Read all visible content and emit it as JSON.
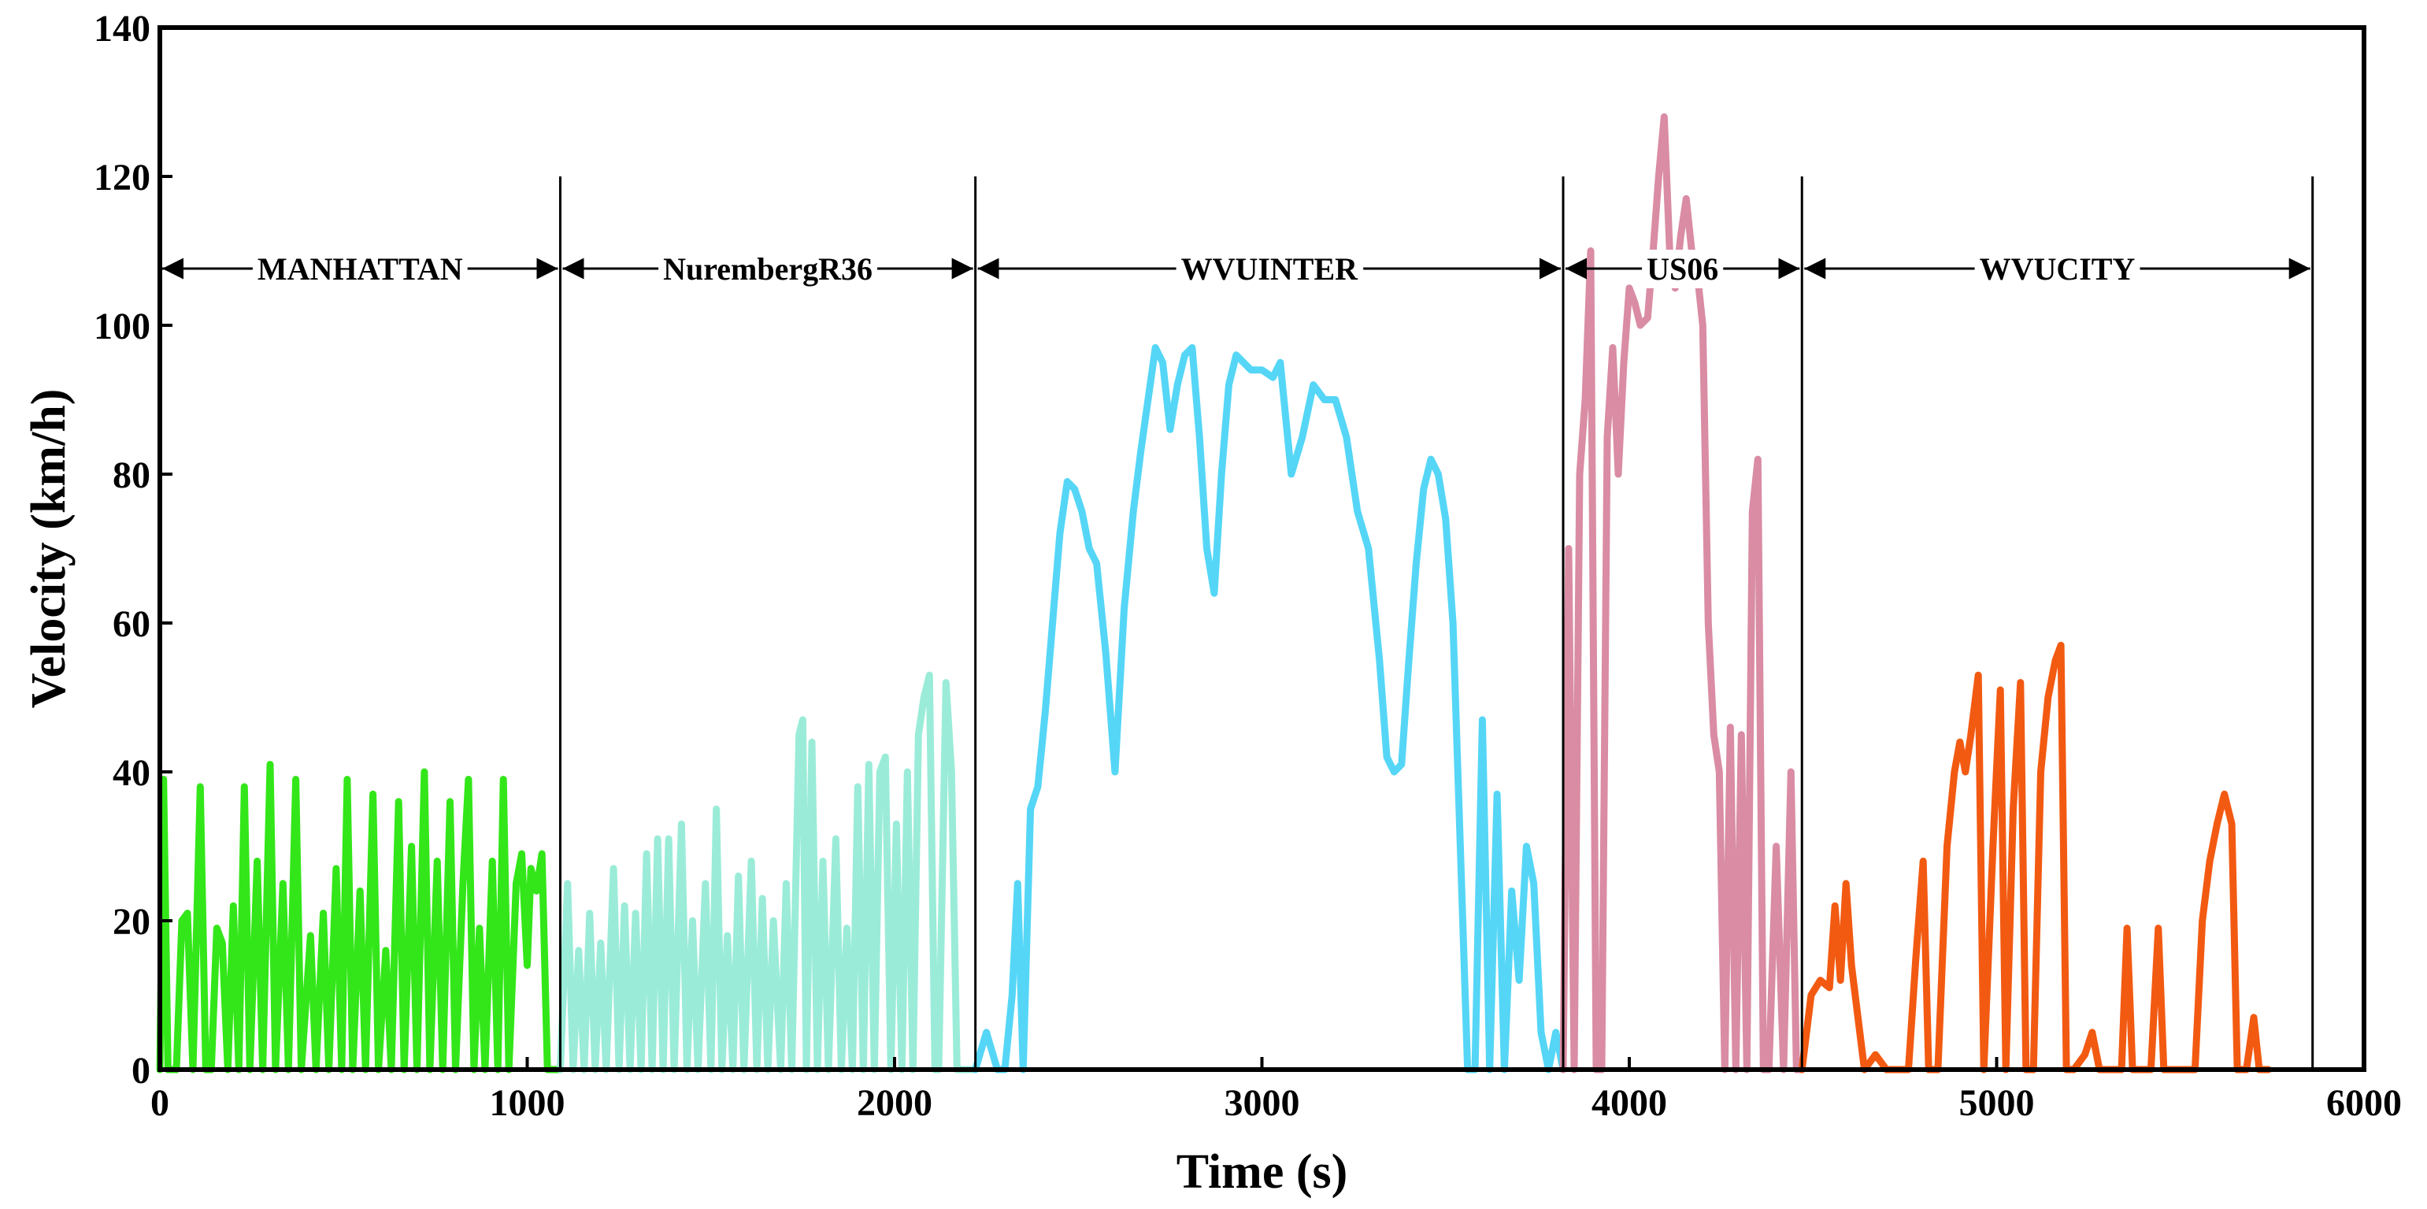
{
  "chart_data": {
    "type": "line",
    "xlabel": "Time (s)",
    "ylabel": "Velocity (km/h)",
    "xlim": [
      0,
      6000
    ],
    "ylim": [
      0,
      140
    ],
    "xticks": [
      "0",
      "1000",
      "2000",
      "3000",
      "4000",
      "5000",
      "6000"
    ],
    "yticks": [
      "0",
      "20",
      "40",
      "60",
      "80",
      "100",
      "120",
      "140"
    ],
    "grid": false,
    "segments": [
      {
        "name": "MANHATTAN",
        "start": 0,
        "end": 1090
      },
      {
        "name": "NurembergR36",
        "start": 1090,
        "end": 2220
      },
      {
        "name": "WVUINTER",
        "start": 2220,
        "end": 3820
      },
      {
        "name": "US06",
        "start": 3820,
        "end": 4470
      },
      {
        "name": "WVUCITY",
        "start": 4470,
        "end": 5860
      }
    ],
    "series": [
      {
        "name": "MANHATTAN",
        "color": "#33e619",
        "points": [
          [
            0,
            0
          ],
          [
            10,
            39
          ],
          [
            22,
            0
          ],
          [
            45,
            0
          ],
          [
            60,
            20
          ],
          [
            75,
            21
          ],
          [
            90,
            0
          ],
          [
            110,
            38
          ],
          [
            125,
            0
          ],
          [
            140,
            0
          ],
          [
            155,
            19
          ],
          [
            170,
            17
          ],
          [
            185,
            0
          ],
          [
            200,
            22
          ],
          [
            215,
            0
          ],
          [
            230,
            38
          ],
          [
            245,
            0
          ],
          [
            265,
            28
          ],
          [
            280,
            0
          ],
          [
            300,
            41
          ],
          [
            315,
            0
          ],
          [
            335,
            25
          ],
          [
            350,
            0
          ],
          [
            370,
            39
          ],
          [
            385,
            0
          ],
          [
            410,
            18
          ],
          [
            425,
            0
          ],
          [
            445,
            21
          ],
          [
            460,
            0
          ],
          [
            480,
            27
          ],
          [
            495,
            0
          ],
          [
            510,
            39
          ],
          [
            525,
            0
          ],
          [
            545,
            24
          ],
          [
            560,
            0
          ],
          [
            580,
            37
          ],
          [
            595,
            0
          ],
          [
            615,
            16
          ],
          [
            630,
            0
          ],
          [
            650,
            36
          ],
          [
            665,
            0
          ],
          [
            685,
            30
          ],
          [
            700,
            0
          ],
          [
            720,
            40
          ],
          [
            735,
            0
          ],
          [
            755,
            28
          ],
          [
            770,
            0
          ],
          [
            790,
            36
          ],
          [
            805,
            0
          ],
          [
            825,
            25
          ],
          [
            840,
            39
          ],
          [
            855,
            0
          ],
          [
            870,
            19
          ],
          [
            885,
            0
          ],
          [
            905,
            28
          ],
          [
            920,
            0
          ],
          [
            935,
            39
          ],
          [
            950,
            0
          ],
          [
            970,
            25
          ],
          [
            985,
            29
          ],
          [
            1000,
            14
          ],
          [
            1010,
            27
          ],
          [
            1025,
            24
          ],
          [
            1040,
            29
          ],
          [
            1055,
            0
          ],
          [
            1090,
            0
          ]
        ]
      },
      {
        "name": "NurembergR36",
        "color": "#9aecd8",
        "points": [
          [
            1090,
            0
          ],
          [
            1110,
            25
          ],
          [
            1125,
            0
          ],
          [
            1140,
            16
          ],
          [
            1155,
            0
          ],
          [
            1170,
            21
          ],
          [
            1185,
            0
          ],
          [
            1200,
            17
          ],
          [
            1215,
            0
          ],
          [
            1235,
            27
          ],
          [
            1250,
            0
          ],
          [
            1265,
            22
          ],
          [
            1280,
            0
          ],
          [
            1295,
            21
          ],
          [
            1310,
            0
          ],
          [
            1325,
            29
          ],
          [
            1340,
            0
          ],
          [
            1355,
            31
          ],
          [
            1370,
            0
          ],
          [
            1385,
            31
          ],
          [
            1400,
            0
          ],
          [
            1420,
            33
          ],
          [
            1435,
            0
          ],
          [
            1450,
            20
          ],
          [
            1465,
            0
          ],
          [
            1485,
            25
          ],
          [
            1500,
            0
          ],
          [
            1515,
            35
          ],
          [
            1530,
            0
          ],
          [
            1545,
            18
          ],
          [
            1560,
            0
          ],
          [
            1575,
            26
          ],
          [
            1590,
            0
          ],
          [
            1610,
            28
          ],
          [
            1625,
            0
          ],
          [
            1640,
            23
          ],
          [
            1655,
            0
          ],
          [
            1670,
            20
          ],
          [
            1690,
            0
          ],
          [
            1705,
            25
          ],
          [
            1720,
            0
          ],
          [
            1740,
            45
          ],
          [
            1750,
            47
          ],
          [
            1760,
            0
          ],
          [
            1775,
            44
          ],
          [
            1790,
            0
          ],
          [
            1805,
            28
          ],
          [
            1820,
            0
          ],
          [
            1840,
            31
          ],
          [
            1855,
            0
          ],
          [
            1870,
            19
          ],
          [
            1885,
            0
          ],
          [
            1900,
            38
          ],
          [
            1915,
            0
          ],
          [
            1930,
            41
          ],
          [
            1945,
            0
          ],
          [
            1960,
            40
          ],
          [
            1975,
            42
          ],
          [
            1990,
            0
          ],
          [
            2005,
            33
          ],
          [
            2020,
            0
          ],
          [
            2035,
            40
          ],
          [
            2050,
            0
          ],
          [
            2065,
            45
          ],
          [
            2080,
            50
          ],
          [
            2095,
            53
          ],
          [
            2110,
            0
          ],
          [
            2120,
            0
          ],
          [
            2140,
            52
          ],
          [
            2155,
            40
          ],
          [
            2170,
            0
          ],
          [
            2200,
            0
          ],
          [
            2220,
            0
          ]
        ]
      },
      {
        "name": "WVUINTER",
        "color": "#55d6f6",
        "points": [
          [
            2220,
            0
          ],
          [
            2250,
            5
          ],
          [
            2280,
            0
          ],
          [
            2300,
            0
          ],
          [
            2320,
            10
          ],
          [
            2335,
            25
          ],
          [
            2350,
            0
          ],
          [
            2370,
            35
          ],
          [
            2390,
            38
          ],
          [
            2410,
            48
          ],
          [
            2430,
            60
          ],
          [
            2450,
            72
          ],
          [
            2470,
            79
          ],
          [
            2490,
            78
          ],
          [
            2510,
            75
          ],
          [
            2530,
            70
          ],
          [
            2550,
            68
          ],
          [
            2575,
            56
          ],
          [
            2600,
            40
          ],
          [
            2625,
            62
          ],
          [
            2650,
            75
          ],
          [
            2670,
            83
          ],
          [
            2690,
            90
          ],
          [
            2710,
            97
          ],
          [
            2730,
            95
          ],
          [
            2750,
            86
          ],
          [
            2770,
            92
          ],
          [
            2790,
            96
          ],
          [
            2810,
            97
          ],
          [
            2830,
            85
          ],
          [
            2850,
            70
          ],
          [
            2870,
            64
          ],
          [
            2890,
            80
          ],
          [
            2910,
            92
          ],
          [
            2930,
            96
          ],
          [
            2950,
            95
          ],
          [
            2970,
            94
          ],
          [
            3000,
            94
          ],
          [
            3030,
            93
          ],
          [
            3050,
            95
          ],
          [
            3080,
            80
          ],
          [
            3110,
            85
          ],
          [
            3140,
            92
          ],
          [
            3170,
            90
          ],
          [
            3200,
            90
          ],
          [
            3230,
            85
          ],
          [
            3260,
            75
          ],
          [
            3290,
            70
          ],
          [
            3320,
            55
          ],
          [
            3340,
            42
          ],
          [
            3360,
            40
          ],
          [
            3380,
            41
          ],
          [
            3400,
            55
          ],
          [
            3420,
            68
          ],
          [
            3440,
            78
          ],
          [
            3460,
            82
          ],
          [
            3480,
            80
          ],
          [
            3500,
            74
          ],
          [
            3520,
            60
          ],
          [
            3540,
            30
          ],
          [
            3560,
            0
          ],
          [
            3580,
            0
          ],
          [
            3600,
            47
          ],
          [
            3620,
            0
          ],
          [
            3640,
            37
          ],
          [
            3660,
            0
          ],
          [
            3680,
            24
          ],
          [
            3700,
            12
          ],
          [
            3720,
            30
          ],
          [
            3740,
            25
          ],
          [
            3760,
            5
          ],
          [
            3780,
            0
          ],
          [
            3800,
            5
          ],
          [
            3820,
            0
          ]
        ]
      },
      {
        "name": "US06",
        "color": "#d98ca3",
        "points": [
          [
            3820,
            0
          ],
          [
            3835,
            70
          ],
          [
            3850,
            0
          ],
          [
            3865,
            80
          ],
          [
            3880,
            90
          ],
          [
            3895,
            110
          ],
          [
            3910,
            0
          ],
          [
            3925,
            0
          ],
          [
            3940,
            85
          ],
          [
            3955,
            97
          ],
          [
            3970,
            80
          ],
          [
            3985,
            95
          ],
          [
            4000,
            105
          ],
          [
            4015,
            103
          ],
          [
            4030,
            100
          ],
          [
            4050,
            101
          ],
          [
            4065,
            110
          ],
          [
            4080,
            120
          ],
          [
            4095,
            128
          ],
          [
            4110,
            110
          ],
          [
            4125,
            105
          ],
          [
            4140,
            112
          ],
          [
            4155,
            117
          ],
          [
            4170,
            110
          ],
          [
            4185,
            107
          ],
          [
            4200,
            100
          ],
          [
            4215,
            60
          ],
          [
            4230,
            45
          ],
          [
            4245,
            40
          ],
          [
            4260,
            0
          ],
          [
            4275,
            46
          ],
          [
            4290,
            0
          ],
          [
            4305,
            45
          ],
          [
            4320,
            0
          ],
          [
            4335,
            75
          ],
          [
            4350,
            82
          ],
          [
            4365,
            0
          ],
          [
            4380,
            0
          ],
          [
            4400,
            30
          ],
          [
            4420,
            0
          ],
          [
            4440,
            40
          ],
          [
            4455,
            0
          ],
          [
            4470,
            0
          ]
        ]
      },
      {
        "name": "WVUCITY",
        "color": "#f25a12",
        "points": [
          [
            4470,
            0
          ],
          [
            4495,
            10
          ],
          [
            4520,
            12
          ],
          [
            4545,
            11
          ],
          [
            4560,
            22
          ],
          [
            4575,
            12
          ],
          [
            4590,
            25
          ],
          [
            4605,
            14
          ],
          [
            4620,
            8
          ],
          [
            4640,
            0
          ],
          [
            4670,
            2
          ],
          [
            4700,
            0
          ],
          [
            4760,
            0
          ],
          [
            4780,
            15
          ],
          [
            4800,
            28
          ],
          [
            4815,
            0
          ],
          [
            4840,
            0
          ],
          [
            4865,
            30
          ],
          [
            4885,
            40
          ],
          [
            4900,
            44
          ],
          [
            4915,
            40
          ],
          [
            4930,
            45
          ],
          [
            4950,
            53
          ],
          [
            4965,
            0
          ],
          [
            4990,
            30
          ],
          [
            5010,
            51
          ],
          [
            5025,
            0
          ],
          [
            5045,
            35
          ],
          [
            5065,
            52
          ],
          [
            5080,
            0
          ],
          [
            5100,
            0
          ],
          [
            5120,
            40
          ],
          [
            5140,
            50
          ],
          [
            5160,
            55
          ],
          [
            5175,
            57
          ],
          [
            5190,
            0
          ],
          [
            5210,
            0
          ],
          [
            5240,
            2
          ],
          [
            5260,
            5
          ],
          [
            5280,
            0
          ],
          [
            5340,
            0
          ],
          [
            5355,
            19
          ],
          [
            5370,
            0
          ],
          [
            5400,
            0
          ],
          [
            5420,
            0
          ],
          [
            5440,
            19
          ],
          [
            5455,
            0
          ],
          [
            5480,
            0
          ],
          [
            5540,
            0
          ],
          [
            5560,
            20
          ],
          [
            5580,
            28
          ],
          [
            5600,
            33
          ],
          [
            5620,
            37
          ],
          [
            5640,
            33
          ],
          [
            5655,
            0
          ],
          [
            5680,
            0
          ],
          [
            5700,
            7
          ],
          [
            5715,
            0
          ],
          [
            5740,
            0
          ]
        ]
      }
    ]
  }
}
